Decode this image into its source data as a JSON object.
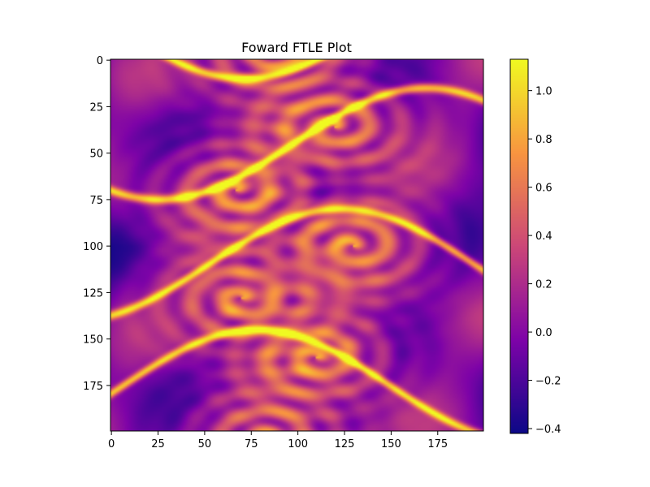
{
  "chart_data": {
    "type": "heatmap",
    "title": "Foward FTLE Plot",
    "xlabel": "",
    "ylabel": "",
    "xlim": [
      0,
      199
    ],
    "ylim": [
      199,
      0
    ],
    "x_ticks": [
      "0",
      "25",
      "50",
      "75",
      "100",
      "125",
      "150",
      "175"
    ],
    "y_ticks": [
      "0",
      "25",
      "50",
      "75",
      "100",
      "125",
      "150",
      "175"
    ],
    "colorbar": {
      "colormap": "plasma",
      "range": [
        -0.42,
        1.13
      ],
      "ticks": [
        "−0.4",
        "−0.2",
        "0.0",
        "0.2",
        "0.4",
        "0.6",
        "0.8",
        "1.0"
      ]
    },
    "field": {
      "grid_size": [
        200,
        200
      ],
      "vortex_centers_xy": [
        [
          85,
          -5
        ],
        [
          120,
          36
        ],
        [
          67,
          70
        ],
        [
          130,
          100
        ],
        [
          70,
          128
        ],
        [
          110,
          160
        ],
        [
          85,
          203
        ]
      ],
      "description_colors": [
        "#0d0887",
        "#7e03a8",
        "#cc4778",
        "#f89540",
        "#f0f921"
      ]
    },
    "grid": false,
    "legend": "none"
  }
}
